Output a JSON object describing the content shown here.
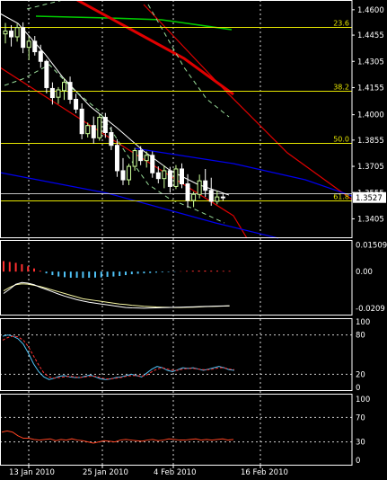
{
  "colors": {
    "background": "#000000",
    "frame": "#ffffff",
    "fib": "#e6e600",
    "bull_candle": "#ccff99",
    "bear_candle": "#ffffff",
    "ma_fast": "#ffffff",
    "ma_slow": "#00cc00",
    "red_channel": "#e00000",
    "blue_channel": "#0000ee",
    "bands": "#99dd99",
    "macd_pos": "#ff3030",
    "macd_neg": "#4fc3f7",
    "macd_signal": "#f5f5a0",
    "stoch_k": "#4fc3f7",
    "stoch_d": "#ff3030",
    "rsi": "#ff4422"
  },
  "chart_data": [
    {
      "type": "candlestick",
      "title": "",
      "price_ticks": [
        "1.4600",
        "1.4455",
        "1.4305",
        "1.4155",
        "1.4000",
        "1.3855",
        "1.3705",
        "1.3555",
        "1.3405"
      ],
      "x_ticks": [
        "13 Jan 2010",
        "25 Jan 2010",
        "4 Feb 2010",
        "16 Feb 2010"
      ],
      "current_price": "1.3527",
      "ylim": [
        1.332,
        1.463
      ],
      "fib_levels": [
        {
          "label": "23.6",
          "price": 1.45
        },
        {
          "label": "38.2",
          "price": 1.4135
        },
        {
          "label": "50.0",
          "price": 1.3838
        },
        {
          "label": "61.8",
          "price": 1.3508
        }
      ],
      "candles": [
        {
          "o": 1.4462,
          "h": 1.4525,
          "l": 1.4408,
          "c": 1.4478
        },
        {
          "o": 1.4478,
          "h": 1.4512,
          "l": 1.439,
          "c": 1.4445
        },
        {
          "o": 1.4445,
          "h": 1.452,
          "l": 1.4418,
          "c": 1.4498
        },
        {
          "o": 1.4498,
          "h": 1.4528,
          "l": 1.4352,
          "c": 1.4385
        },
        {
          "o": 1.4385,
          "h": 1.4445,
          "l": 1.4312,
          "c": 1.442
        },
        {
          "o": 1.442,
          "h": 1.445,
          "l": 1.4338,
          "c": 1.436
        },
        {
          "o": 1.4362,
          "h": 1.44,
          "l": 1.4268,
          "c": 1.4305
        },
        {
          "o": 1.4305,
          "h": 1.4315,
          "l": 1.4122,
          "c": 1.4155
        },
        {
          "o": 1.415,
          "h": 1.4185,
          "l": 1.4058,
          "c": 1.4098
        },
        {
          "o": 1.41,
          "h": 1.4158,
          "l": 1.4062,
          "c": 1.4142
        },
        {
          "o": 1.4138,
          "h": 1.4208,
          "l": 1.4085,
          "c": 1.4185
        },
        {
          "o": 1.4185,
          "h": 1.4218,
          "l": 1.4062,
          "c": 1.4088
        },
        {
          "o": 1.4088,
          "h": 1.412,
          "l": 1.4008,
          "c": 1.4032
        },
        {
          "o": 1.4032,
          "h": 1.4065,
          "l": 1.386,
          "c": 1.3892
        },
        {
          "o": 1.3892,
          "h": 1.3955,
          "l": 1.387,
          "c": 1.3938
        },
        {
          "o": 1.3938,
          "h": 1.399,
          "l": 1.3835,
          "c": 1.3868
        },
        {
          "o": 1.3868,
          "h": 1.4002,
          "l": 1.3852,
          "c": 1.3985
        },
        {
          "o": 1.3985,
          "h": 1.401,
          "l": 1.3868,
          "c": 1.3898
        },
        {
          "o": 1.3898,
          "h": 1.3932,
          "l": 1.3798,
          "c": 1.3825
        },
        {
          "o": 1.3825,
          "h": 1.386,
          "l": 1.3645,
          "c": 1.368
        },
        {
          "o": 1.368,
          "h": 1.3752,
          "l": 1.3598,
          "c": 1.3628
        },
        {
          "o": 1.3628,
          "h": 1.372,
          "l": 1.3598,
          "c": 1.3705
        },
        {
          "o": 1.3705,
          "h": 1.381,
          "l": 1.368,
          "c": 1.3795
        },
        {
          "o": 1.3795,
          "h": 1.382,
          "l": 1.3712,
          "c": 1.3738
        },
        {
          "o": 1.3738,
          "h": 1.379,
          "l": 1.3698,
          "c": 1.3768
        },
        {
          "o": 1.3768,
          "h": 1.379,
          "l": 1.364,
          "c": 1.3668
        },
        {
          "o": 1.3668,
          "h": 1.3705,
          "l": 1.3608,
          "c": 1.3635
        },
        {
          "o": 1.3635,
          "h": 1.371,
          "l": 1.358,
          "c": 1.368
        },
        {
          "o": 1.368,
          "h": 1.3702,
          "l": 1.3555,
          "c": 1.359
        },
        {
          "o": 1.359,
          "h": 1.3712,
          "l": 1.3575,
          "c": 1.369
        },
        {
          "o": 1.369,
          "h": 1.3722,
          "l": 1.358,
          "c": 1.3605
        },
        {
          "o": 1.3605,
          "h": 1.366,
          "l": 1.3468,
          "c": 1.351
        },
        {
          "o": 1.351,
          "h": 1.356,
          "l": 1.3472,
          "c": 1.3545
        },
        {
          "o": 1.3545,
          "h": 1.3658,
          "l": 1.3522,
          "c": 1.3622
        },
        {
          "o": 1.3622,
          "h": 1.369,
          "l": 1.353,
          "c": 1.3568
        },
        {
          "o": 1.3568,
          "h": 1.364,
          "l": 1.348,
          "c": 1.3505
        },
        {
          "o": 1.3505,
          "h": 1.3565,
          "l": 1.3488,
          "c": 1.353
        },
        {
          "o": 1.353,
          "h": 1.3548,
          "l": 1.3508,
          "c": 1.3527
        }
      ]
    },
    {
      "type": "bar",
      "title": "",
      "ticks": [
        "0.01509",
        "0.00",
        "-0.0209"
      ],
      "ylim": [
        -0.0225,
        0.0165
      ],
      "histogram": [
        0.006,
        0.0055,
        0.005,
        0.0042,
        0.003,
        0.0018,
        0.0005,
        -0.001,
        -0.002,
        -0.0028,
        -0.0032,
        -0.0035,
        -0.0035,
        -0.0036,
        -0.0035,
        -0.0034,
        -0.0033,
        -0.003,
        -0.0028,
        -0.0025,
        -0.002,
        -0.0015,
        -0.0012,
        -0.001,
        -0.0008,
        -0.0006,
        -0.0004,
        -0.0003,
        -0.0002,
        0.0002,
        0.0004,
        0.0005,
        0.0006,
        0.0006,
        0.0005,
        0.0005,
        0.0004,
        0.0004
      ],
      "signal": [
        -0.011,
        -0.009,
        -0.0075,
        -0.007,
        -0.0072,
        -0.0078,
        -0.0085,
        -0.0095,
        -0.0105,
        -0.0115,
        -0.0125,
        -0.0135,
        -0.0145,
        -0.0155,
        -0.016,
        -0.0165,
        -0.017,
        -0.0175,
        -0.018,
        -0.0185,
        -0.0188,
        -0.0192,
        -0.0195,
        -0.0198,
        -0.02,
        -0.0202,
        -0.0203,
        -0.0204,
        -0.0205,
        -0.0205,
        -0.0204,
        -0.0203,
        -0.0202,
        -0.02,
        -0.0199,
        -0.0198,
        -0.0197,
        -0.0196
      ],
      "macd": [
        -0.0125,
        -0.01,
        -0.0072,
        -0.0062,
        -0.0066,
        -0.0075,
        -0.009,
        -0.0102,
        -0.0115,
        -0.0128,
        -0.014,
        -0.015,
        -0.016,
        -0.0168,
        -0.0175,
        -0.018,
        -0.0185,
        -0.019,
        -0.0195,
        -0.02,
        -0.0205,
        -0.0207,
        -0.0208,
        -0.0209,
        -0.0208,
        -0.0207,
        -0.0206,
        -0.0205,
        -0.0204,
        -0.0203,
        -0.0202,
        -0.0201,
        -0.02,
        -0.0199,
        -0.0198,
        -0.0197,
        -0.0196,
        -0.0195
      ]
    },
    {
      "type": "line",
      "title": "",
      "ticks": [
        "100",
        "80",
        "20",
        "0"
      ],
      "ylim": [
        0,
        100
      ],
      "series": [
        {
          "values": [
            78,
            80,
            78,
            74,
            66,
            52,
            36,
            24,
            16,
            12,
            14,
            17,
            18,
            16,
            15,
            15,
            17,
            19,
            16,
            13,
            12,
            13,
            15,
            16,
            18,
            20,
            18,
            16,
            22,
            28,
            32,
            30,
            26,
            24,
            27,
            30,
            29,
            30,
            28,
            26,
            28,
            30,
            32,
            30,
            27,
            26
          ]
        },
        {
          "values": [
            72,
            76,
            78,
            77,
            72,
            62,
            48,
            34,
            22,
            16,
            14,
            15,
            16,
            17,
            16,
            15,
            16,
            17,
            17,
            15,
            13,
            13,
            14,
            15,
            17,
            18,
            18,
            17,
            19,
            24,
            28,
            30,
            28,
            26,
            26,
            28,
            29,
            29,
            28,
            27,
            27,
            28,
            30,
            30,
            28,
            27
          ]
        }
      ]
    },
    {
      "type": "line",
      "title": "",
      "ticks": [
        "100",
        "70",
        "30",
        "0"
      ],
      "ylim": [
        0,
        100
      ],
      "series": [
        {
          "values": [
            46,
            48,
            46,
            40,
            36,
            36,
            34,
            33,
            34,
            35,
            32,
            34,
            33,
            35,
            33,
            32,
            30,
            28,
            30,
            32,
            31,
            30,
            33,
            34,
            33,
            32,
            31,
            33,
            34,
            32,
            33,
            35,
            34,
            33,
            33,
            34,
            35,
            33,
            34,
            33,
            34,
            35,
            33,
            34
          ]
        }
      ]
    }
  ]
}
